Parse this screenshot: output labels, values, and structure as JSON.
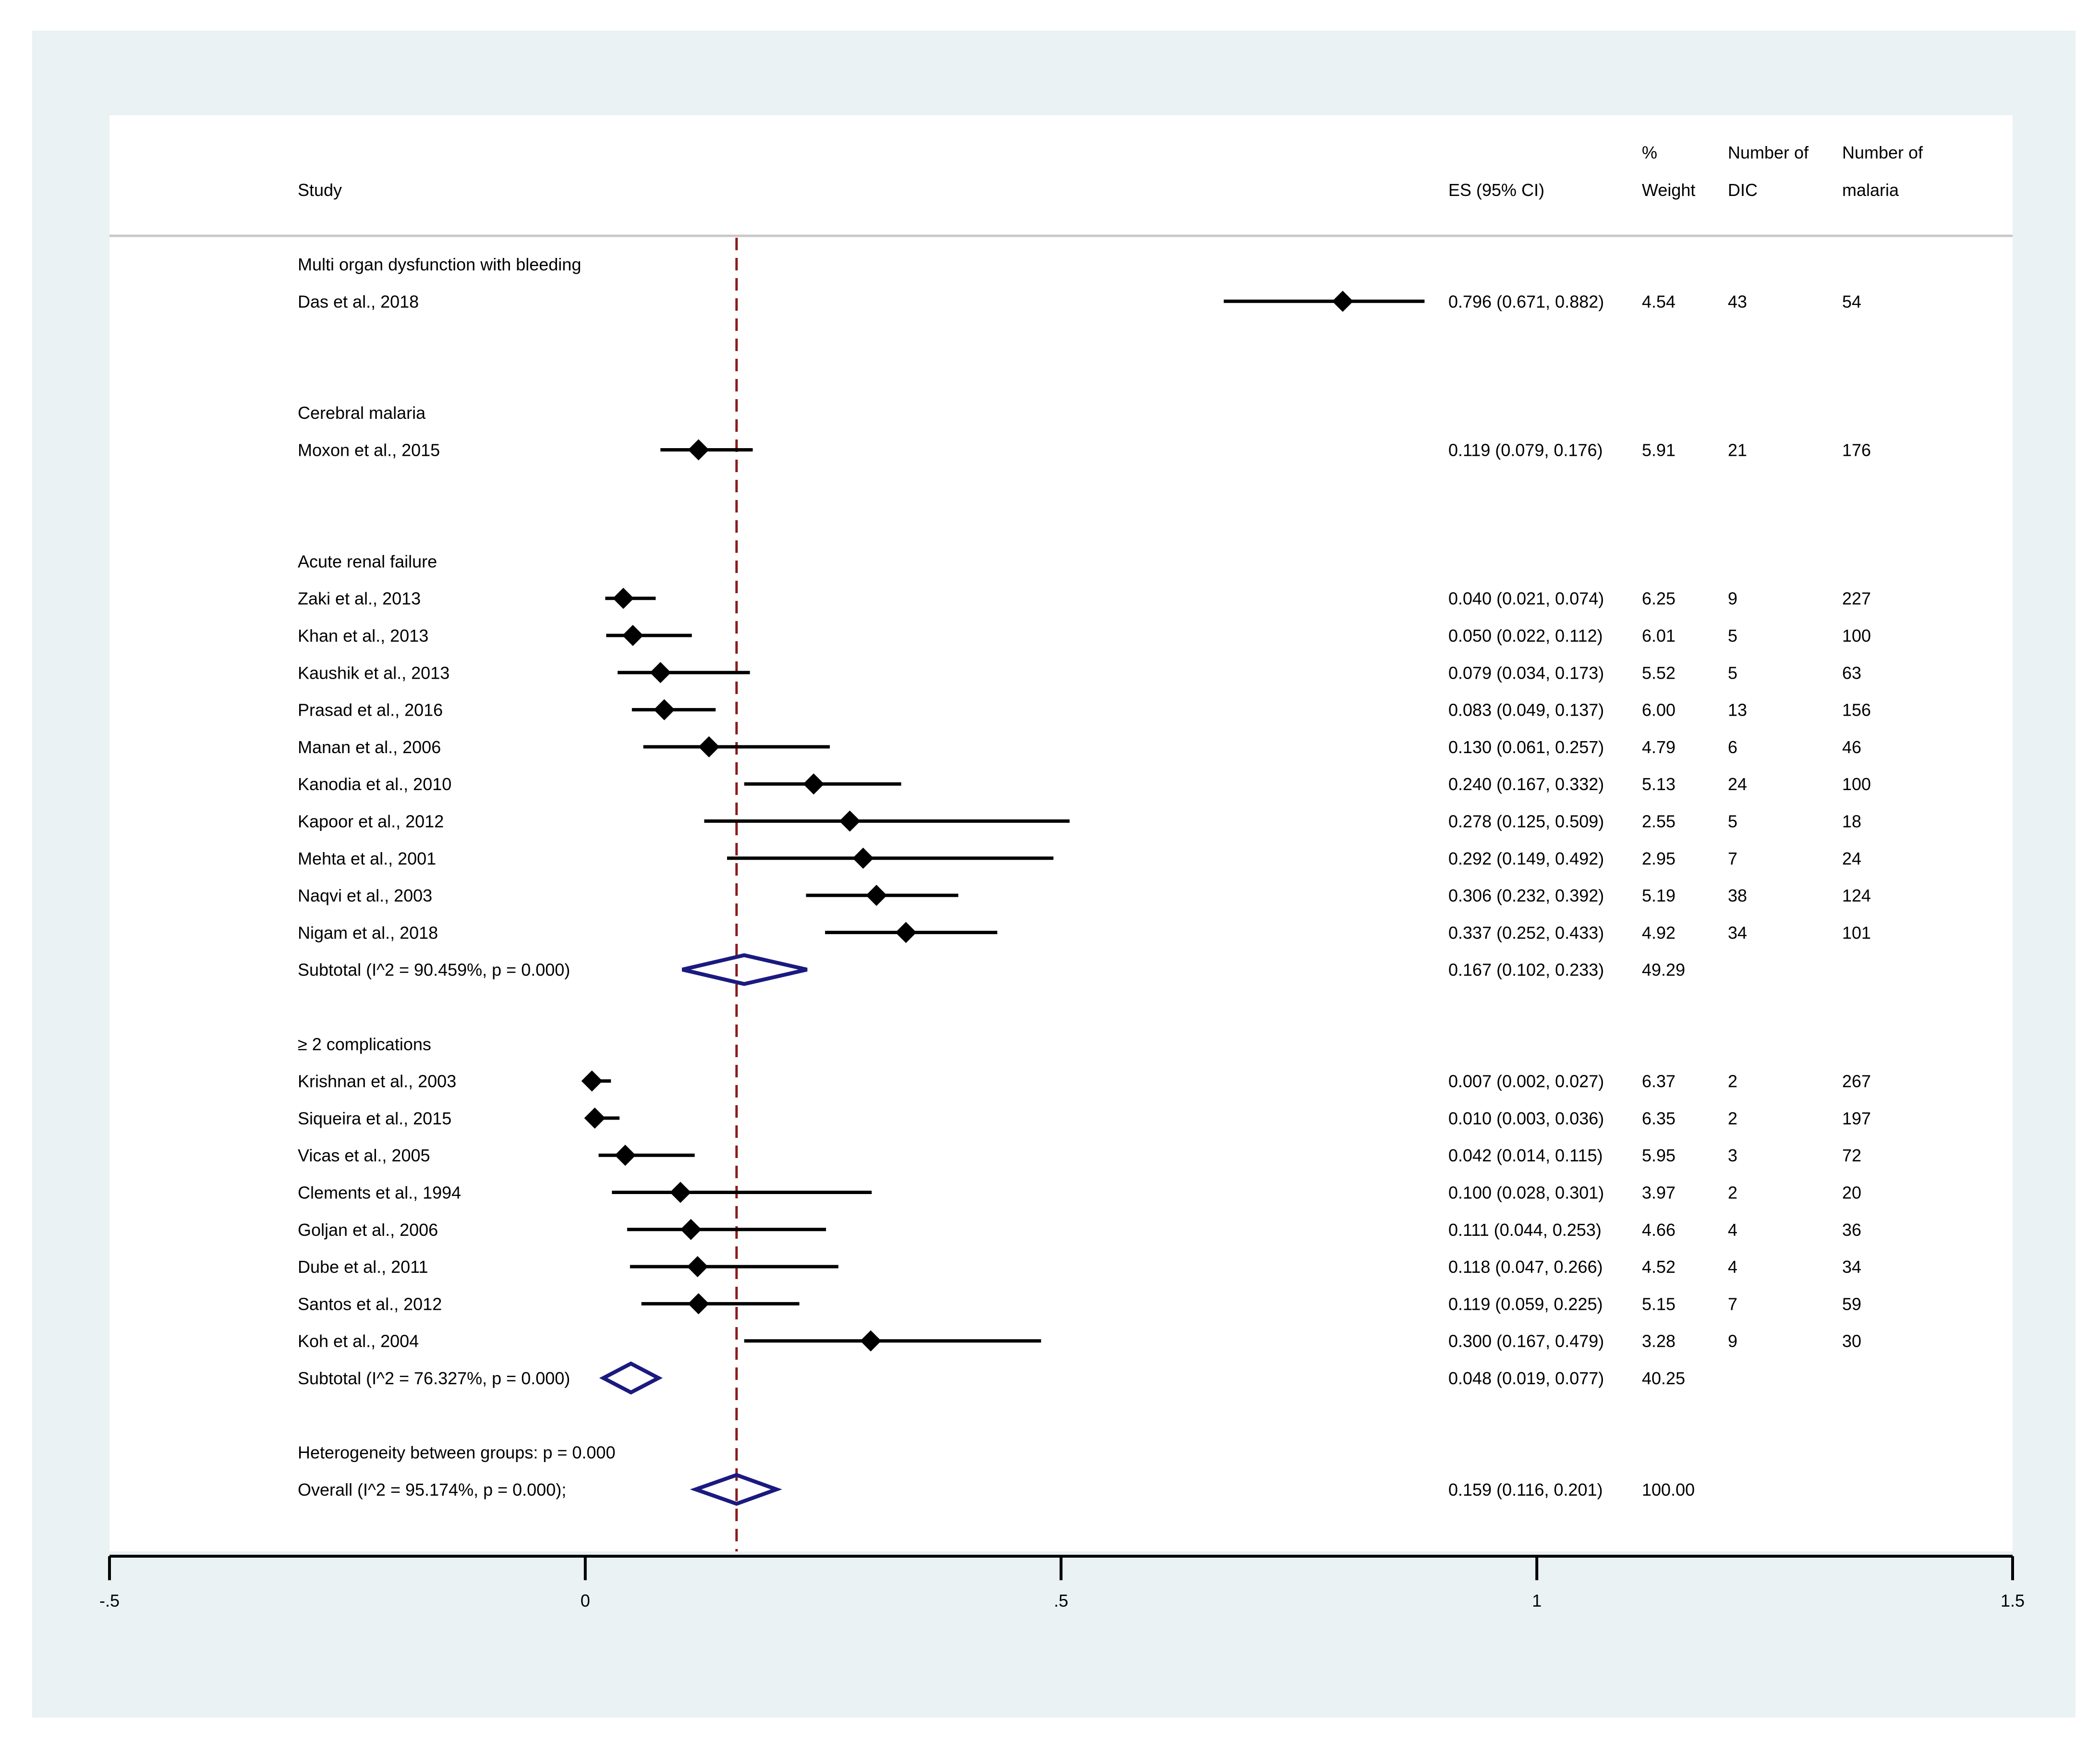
{
  "chart_data": {
    "type": "forest",
    "xlim": [
      -0.5,
      1.5
    ],
    "x_ticks": [
      -0.5,
      0,
      0.5,
      1,
      1.5
    ],
    "x_tick_labels": [
      "-.5",
      "0",
      ".5",
      "1",
      "1.5"
    ],
    "reference_line": 0.159,
    "columns": {
      "study": "Study",
      "es": "ES (95% CI)",
      "weight_1": "%",
      "weight_2": "Weight",
      "dic_1": "Number of",
      "dic_2": "DIC",
      "malaria_1": "Number of",
      "malaria_2": "malaria"
    },
    "rows": [
      {
        "kind": "header",
        "label": "Multi organ dysfunction with bleeding"
      },
      {
        "kind": "study",
        "label": "Das et al., 2018",
        "es": 0.796,
        "lo": 0.671,
        "hi": 0.882,
        "es_text": "0.796 (0.671, 0.882)",
        "weight": "4.54",
        "dic": "43",
        "malaria": "54"
      },
      {
        "kind": "gap"
      },
      {
        "kind": "gap"
      },
      {
        "kind": "header",
        "label": "Cerebral malaria"
      },
      {
        "kind": "study",
        "label": "Moxon et al., 2015",
        "es": 0.119,
        "lo": 0.079,
        "hi": 0.176,
        "es_text": "0.119 (0.079, 0.176)",
        "weight": "5.91",
        "dic": "21",
        "malaria": "176"
      },
      {
        "kind": "gap"
      },
      {
        "kind": "gap"
      },
      {
        "kind": "header",
        "label": "Acute renal failure"
      },
      {
        "kind": "study",
        "label": "Zaki et al., 2013",
        "es": 0.04,
        "lo": 0.021,
        "hi": 0.074,
        "es_text": "0.040 (0.021, 0.074)",
        "weight": "6.25",
        "dic": "9",
        "malaria": "227"
      },
      {
        "kind": "study",
        "label": "Khan et al., 2013",
        "es": 0.05,
        "lo": 0.022,
        "hi": 0.112,
        "es_text": "0.050 (0.022, 0.112)",
        "weight": "6.01",
        "dic": "5",
        "malaria": "100"
      },
      {
        "kind": "study",
        "label": "Kaushik et al., 2013",
        "es": 0.079,
        "lo": 0.034,
        "hi": 0.173,
        "es_text": "0.079 (0.034, 0.173)",
        "weight": "5.52",
        "dic": "5",
        "malaria": "63"
      },
      {
        "kind": "study",
        "label": "Prasad et al., 2016",
        "es": 0.083,
        "lo": 0.049,
        "hi": 0.137,
        "es_text": "0.083 (0.049, 0.137)",
        "weight": "6.00",
        "dic": "13",
        "malaria": "156"
      },
      {
        "kind": "study",
        "label": "Manan et al., 2006",
        "es": 0.13,
        "lo": 0.061,
        "hi": 0.257,
        "es_text": "0.130 (0.061, 0.257)",
        "weight": "4.79",
        "dic": "6",
        "malaria": "46"
      },
      {
        "kind": "study",
        "label": "Kanodia et al., 2010",
        "es": 0.24,
        "lo": 0.167,
        "hi": 0.332,
        "es_text": "0.240 (0.167, 0.332)",
        "weight": "5.13",
        "dic": "24",
        "malaria": "100"
      },
      {
        "kind": "study",
        "label": "Kapoor et al., 2012",
        "es": 0.278,
        "lo": 0.125,
        "hi": 0.509,
        "es_text": "0.278 (0.125, 0.509)",
        "weight": "2.55",
        "dic": "5",
        "malaria": "18"
      },
      {
        "kind": "study",
        "label": "Mehta et al., 2001",
        "es": 0.292,
        "lo": 0.149,
        "hi": 0.492,
        "es_text": "0.292 (0.149, 0.492)",
        "weight": "2.95",
        "dic": "7",
        "malaria": "24"
      },
      {
        "kind": "study",
        "label": "Naqvi et al., 2003",
        "es": 0.306,
        "lo": 0.232,
        "hi": 0.392,
        "es_text": "0.306 (0.232, 0.392)",
        "weight": "5.19",
        "dic": "38",
        "malaria": "124"
      },
      {
        "kind": "study",
        "label": "Nigam et al., 2018",
        "es": 0.337,
        "lo": 0.252,
        "hi": 0.433,
        "es_text": "0.337 (0.252, 0.433)",
        "weight": "4.92",
        "dic": "34",
        "malaria": "101"
      },
      {
        "kind": "subtotal",
        "label": "Subtotal  (I^2 = 90.459%, p = 0.000)",
        "es": 0.167,
        "lo": 0.102,
        "hi": 0.233,
        "es_text": "0.167 (0.102, 0.233)",
        "weight": "49.29"
      },
      {
        "kind": "gap"
      },
      {
        "kind": "header",
        "label": "≥ 2 complications"
      },
      {
        "kind": "study",
        "label": "Krishnan et al., 2003",
        "es": 0.007,
        "lo": 0.002,
        "hi": 0.027,
        "es_text": "0.007 (0.002, 0.027)",
        "weight": "6.37",
        "dic": "2",
        "malaria": "267"
      },
      {
        "kind": "study",
        "label": "Siqueira et al., 2015",
        "es": 0.01,
        "lo": 0.003,
        "hi": 0.036,
        "es_text": "0.010 (0.003, 0.036)",
        "weight": "6.35",
        "dic": "2",
        "malaria": "197"
      },
      {
        "kind": "study",
        "label": "Vicas et al., 2005",
        "es": 0.042,
        "lo": 0.014,
        "hi": 0.115,
        "es_text": "0.042 (0.014, 0.115)",
        "weight": "5.95",
        "dic": "3",
        "malaria": "72"
      },
      {
        "kind": "study",
        "label": "Clements et al., 1994",
        "es": 0.1,
        "lo": 0.028,
        "hi": 0.301,
        "es_text": "0.100 (0.028, 0.301)",
        "weight": "3.97",
        "dic": "2",
        "malaria": "20"
      },
      {
        "kind": "study",
        "label": "Goljan et al., 2006",
        "es": 0.111,
        "lo": 0.044,
        "hi": 0.253,
        "es_text": "0.111 (0.044, 0.253)",
        "weight": "4.66",
        "dic": "4",
        "malaria": "36"
      },
      {
        "kind": "study",
        "label": "Dube et al., 2011",
        "es": 0.118,
        "lo": 0.047,
        "hi": 0.266,
        "es_text": "0.118 (0.047, 0.266)",
        "weight": "4.52",
        "dic": "4",
        "malaria": "34"
      },
      {
        "kind": "study",
        "label": "Santos et al., 2012",
        "es": 0.119,
        "lo": 0.059,
        "hi": 0.225,
        "es_text": "0.119 (0.059, 0.225)",
        "weight": "5.15",
        "dic": "7",
        "malaria": "59"
      },
      {
        "kind": "study",
        "label": "Koh et al., 2004",
        "es": 0.3,
        "lo": 0.167,
        "hi": 0.479,
        "es_text": "0.300 (0.167, 0.479)",
        "weight": "3.28",
        "dic": "9",
        "malaria": "30"
      },
      {
        "kind": "subtotal",
        "label": "Subtotal  (I^2 = 76.327%, p = 0.000)",
        "es": 0.048,
        "lo": 0.019,
        "hi": 0.077,
        "es_text": "0.048 (0.019, 0.077)",
        "weight": "40.25"
      },
      {
        "kind": "gap"
      },
      {
        "kind": "header",
        "label": "Heterogeneity between groups: p = 0.000"
      },
      {
        "kind": "overall",
        "label": "Overall  (I^2 = 95.174%, p = 0.000);",
        "es": 0.159,
        "lo": 0.116,
        "hi": 0.201,
        "es_text": "0.159 (0.116, 0.201)",
        "weight": "100.00"
      }
    ],
    "colors": {
      "frame": "#eaf2f3",
      "panel": "#ffffff",
      "text": "#000000",
      "ci": "#000000",
      "diamond": "#1a1a80",
      "reference": "#8b1a1a",
      "divider": "#c8c8c8"
    }
  }
}
